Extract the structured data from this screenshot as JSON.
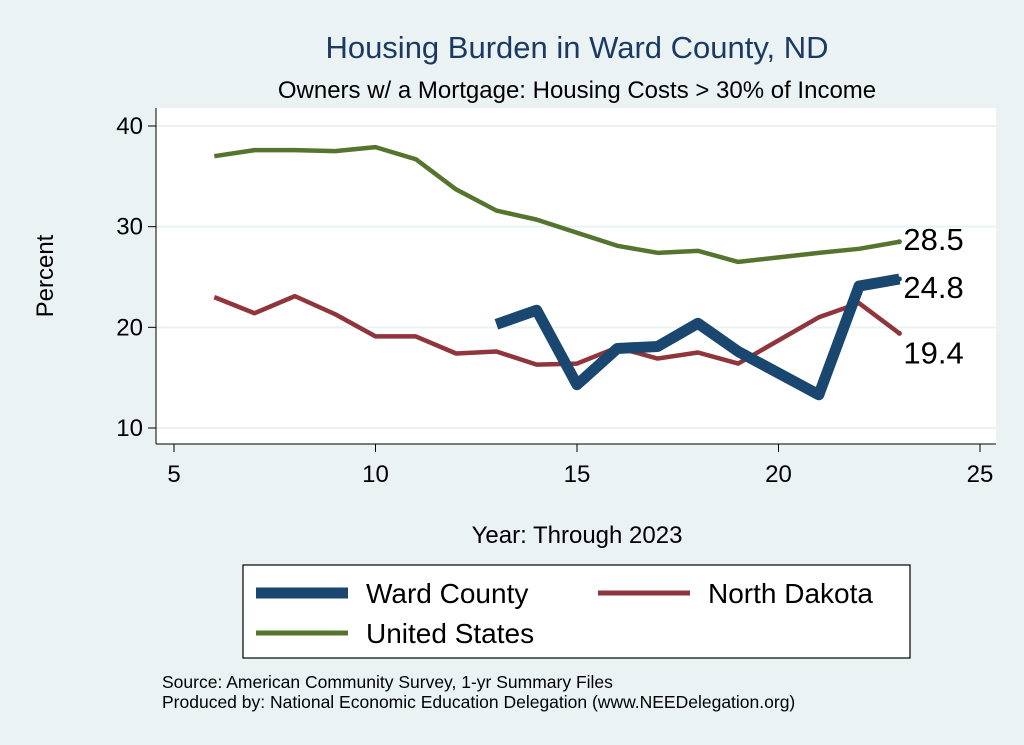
{
  "chart_data": {
    "type": "line",
    "title": "Housing Burden in Ward County, ND",
    "subtitle": "Owners w/ a Mortgage: Housing Costs > 30% of Income",
    "xlabel": "Year: Through 2023",
    "ylabel": "Percent",
    "xlim": [
      5,
      25
    ],
    "ylim": [
      10,
      40
    ],
    "xticks": [
      5,
      10,
      15,
      20,
      25
    ],
    "yticks": [
      10,
      20,
      30,
      40
    ],
    "grid": true,
    "series": [
      {
        "name": "Ward County",
        "color": "#1a476f",
        "x": [
          13,
          14,
          15,
          16,
          17,
          18,
          19,
          21,
          22,
          23
        ],
        "values": [
          20.3,
          21.7,
          14.3,
          17.9,
          18.1,
          20.4,
          17.6,
          13.3,
          24.1,
          24.8
        ],
        "end_label": "24.8"
      },
      {
        "name": "North Dakota",
        "color": "#90353b",
        "x": [
          6,
          7,
          8,
          9,
          10,
          11,
          12,
          13,
          14,
          15,
          16,
          17,
          18,
          19,
          21,
          22,
          23
        ],
        "values": [
          23.0,
          21.4,
          23.1,
          21.3,
          19.1,
          19.1,
          17.4,
          17.6,
          16.3,
          16.4,
          18.0,
          16.9,
          17.5,
          16.4,
          21.0,
          22.4,
          19.4
        ],
        "end_label": "19.4"
      },
      {
        "name": "United States",
        "color": "#55752f",
        "x": [
          6,
          7,
          8,
          9,
          10,
          11,
          12,
          13,
          14,
          15,
          16,
          17,
          18,
          19,
          21,
          22,
          23
        ],
        "values": [
          37.0,
          37.6,
          37.6,
          37.5,
          37.9,
          36.7,
          33.7,
          31.6,
          30.7,
          29.4,
          28.1,
          27.4,
          27.6,
          26.5,
          27.4,
          27.8,
          28.5
        ],
        "end_label": "28.5"
      }
    ],
    "legend": {
      "position": "bottom",
      "items": [
        "Ward County",
        "North Dakota",
        "United States"
      ]
    },
    "notes": [
      "Source: American Community Survey, 1-yr Summary Files",
      "Produced by: National Economic Education Delegation (www.NEEDelegation.org)"
    ]
  }
}
